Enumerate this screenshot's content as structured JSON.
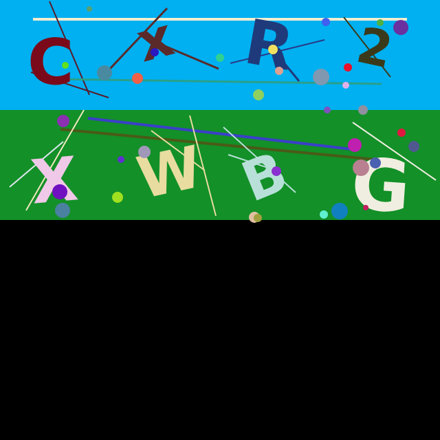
{
  "captcha": {
    "top_row": {
      "background": "#00B0F0",
      "characters": [
        {
          "char": "C",
          "color": "#7A0A1A"
        },
        {
          "char": "x",
          "color": "#5A2A2A"
        },
        {
          "char": "R",
          "color": "#1F3A7A"
        },
        {
          "char": "2",
          "color": "#3A3A1A"
        }
      ]
    },
    "bottom_row": {
      "background": "#139028",
      "characters": [
        {
          "char": "X",
          "color": "#F0C8E8"
        },
        {
          "char": "W",
          "color": "#E8DCA0"
        },
        {
          "char": "B",
          "color": "#B8E0D8"
        },
        {
          "char": "G",
          "color": "#F0EEE0"
        }
      ]
    },
    "lower_area_color": "#000000"
  }
}
